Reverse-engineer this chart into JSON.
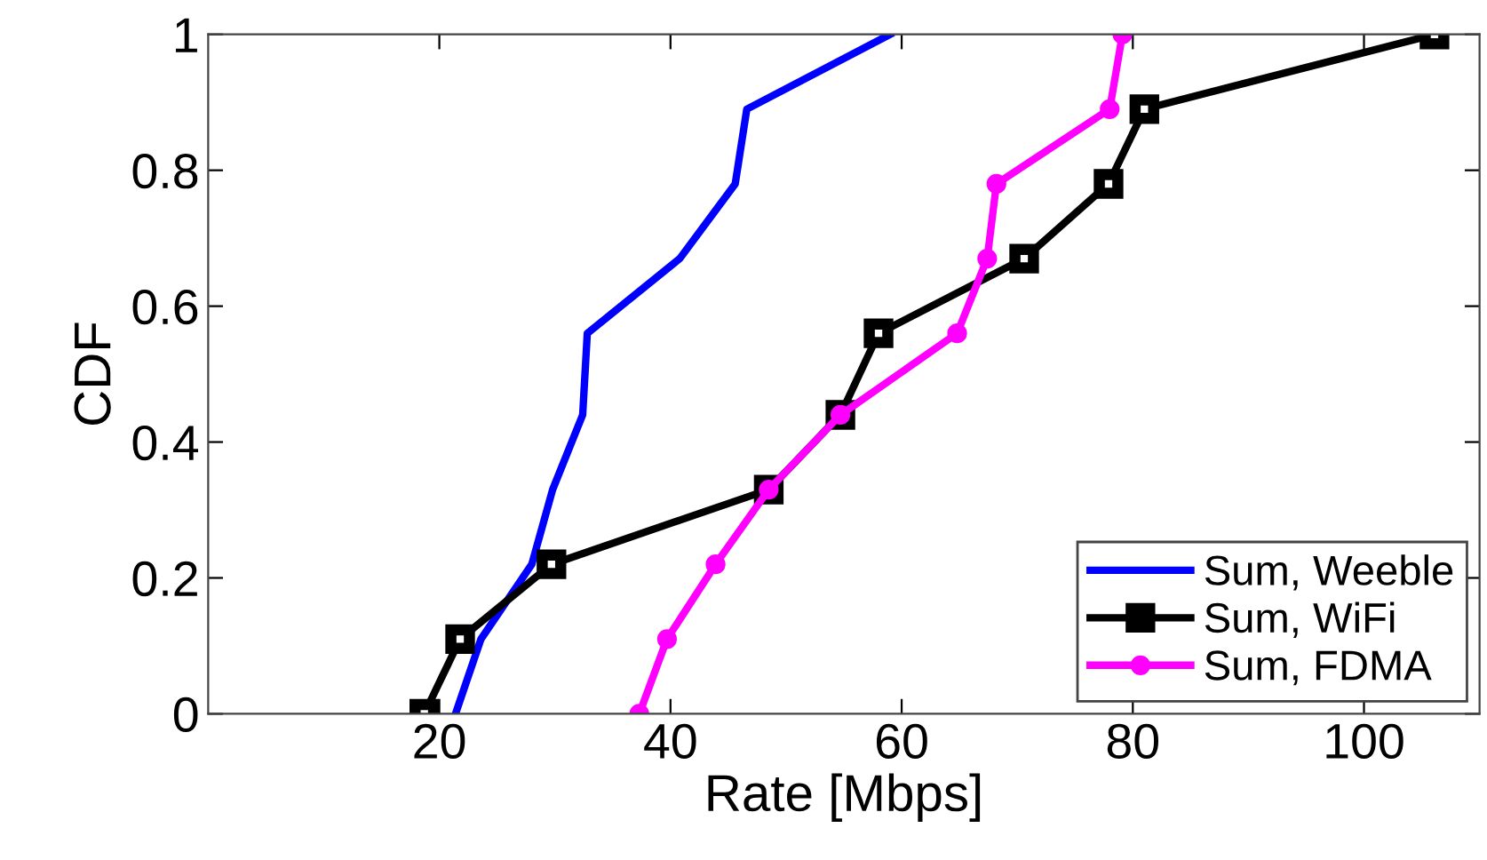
{
  "chart_data": {
    "type": "line",
    "xlabel": "Rate [Mbps]",
    "ylabel": "CDF",
    "xlim": [
      0,
      110
    ],
    "xticks": [
      20,
      40,
      60,
      80,
      100
    ],
    "ylim": [
      0,
      1
    ],
    "yticks": [
      0,
      0.2,
      0.4,
      0.6,
      0.8,
      1
    ],
    "grid": false,
    "legend": "bottom right",
    "line_style": "solid",
    "series": [
      {
        "name": "Sum, Weeble",
        "color": "#0000ff",
        "marker": "none",
        "x": [
          21.4,
          23.6,
          28.0,
          29.8,
          32.4,
          32.8,
          40.8,
          45.6,
          46.6,
          59.0
        ],
        "values": [
          0,
          0.11,
          0.22,
          0.33,
          0.44,
          0.56,
          0.67,
          0.78,
          0.89,
          1
        ]
      },
      {
        "name": "Sum, WiFi",
        "color": "#000000",
        "marker": "square",
        "x": [
          18.7,
          21.8,
          29.7,
          48.5,
          54.7,
          58.0,
          70.6,
          77.9,
          81.0,
          106.1
        ],
        "values": [
          0,
          0.11,
          0.22,
          0.33,
          0.44,
          0.56,
          0.67,
          0.78,
          0.89,
          1
        ]
      },
      {
        "name": "Sum, FDMA",
        "color": "#ff00ff",
        "marker": "circle",
        "x": [
          37.3,
          39.7,
          43.9,
          48.5,
          54.7,
          64.8,
          67.4,
          68.2,
          78.0,
          79.1
        ],
        "values": [
          0,
          0.11,
          0.22,
          0.33,
          0.44,
          0.56,
          0.67,
          0.78,
          0.89,
          1
        ]
      }
    ]
  }
}
